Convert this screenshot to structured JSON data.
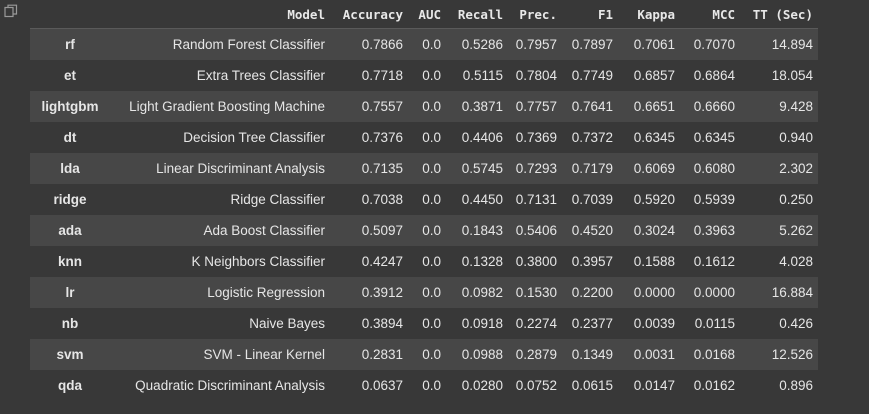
{
  "columns": [
    "Model",
    "Accuracy",
    "AUC",
    "Recall",
    "Prec.",
    "F1",
    "Kappa",
    "MCC",
    "TT (Sec)"
  ],
  "rows": [
    {
      "id": "rf",
      "model": "Random Forest Classifier",
      "accuracy": "0.7866",
      "auc": "0.0",
      "recall": "0.5286",
      "prec": "0.7957",
      "f1": "0.7897",
      "kappa": "0.7061",
      "mcc": "0.7070",
      "tt": "14.894"
    },
    {
      "id": "et",
      "model": "Extra Trees Classifier",
      "accuracy": "0.7718",
      "auc": "0.0",
      "recall": "0.5115",
      "prec": "0.7804",
      "f1": "0.7749",
      "kappa": "0.6857",
      "mcc": "0.6864",
      "tt": "18.054"
    },
    {
      "id": "lightgbm",
      "model": "Light Gradient Boosting Machine",
      "accuracy": "0.7557",
      "auc": "0.0",
      "recall": "0.3871",
      "prec": "0.7757",
      "f1": "0.7641",
      "kappa": "0.6651",
      "mcc": "0.6660",
      "tt": "9.428"
    },
    {
      "id": "dt",
      "model": "Decision Tree Classifier",
      "accuracy": "0.7376",
      "auc": "0.0",
      "recall": "0.4406",
      "prec": "0.7369",
      "f1": "0.7372",
      "kappa": "0.6345",
      "mcc": "0.6345",
      "tt": "0.940"
    },
    {
      "id": "lda",
      "model": "Linear Discriminant Analysis",
      "accuracy": "0.7135",
      "auc": "0.0",
      "recall": "0.5745",
      "prec": "0.7293",
      "f1": "0.7179",
      "kappa": "0.6069",
      "mcc": "0.6080",
      "tt": "2.302"
    },
    {
      "id": "ridge",
      "model": "Ridge Classifier",
      "accuracy": "0.7038",
      "auc": "0.0",
      "recall": "0.4450",
      "prec": "0.7131",
      "f1": "0.7039",
      "kappa": "0.5920",
      "mcc": "0.5939",
      "tt": "0.250"
    },
    {
      "id": "ada",
      "model": "Ada Boost Classifier",
      "accuracy": "0.5097",
      "auc": "0.0",
      "recall": "0.1843",
      "prec": "0.5406",
      "f1": "0.4520",
      "kappa": "0.3024",
      "mcc": "0.3963",
      "tt": "5.262"
    },
    {
      "id": "knn",
      "model": "K Neighbors Classifier",
      "accuracy": "0.4247",
      "auc": "0.0",
      "recall": "0.1328",
      "prec": "0.3800",
      "f1": "0.3957",
      "kappa": "0.1588",
      "mcc": "0.1612",
      "tt": "4.028"
    },
    {
      "id": "lr",
      "model": "Logistic Regression",
      "accuracy": "0.3912",
      "auc": "0.0",
      "recall": "0.0982",
      "prec": "0.1530",
      "f1": "0.2200",
      "kappa": "0.0000",
      "mcc": "0.0000",
      "tt": "16.884"
    },
    {
      "id": "nb",
      "model": "Naive Bayes",
      "accuracy": "0.3894",
      "auc": "0.0",
      "recall": "0.0918",
      "prec": "0.2274",
      "f1": "0.2377",
      "kappa": "0.0039",
      "mcc": "0.0115",
      "tt": "0.426"
    },
    {
      "id": "svm",
      "model": "SVM - Linear Kernel",
      "accuracy": "0.2831",
      "auc": "0.0",
      "recall": "0.0988",
      "prec": "0.2879",
      "f1": "0.1349",
      "kappa": "0.0031",
      "mcc": "0.0168",
      "tt": "12.526"
    },
    {
      "id": "qda",
      "model": "Quadratic Discriminant Analysis",
      "accuracy": "0.0637",
      "auc": "0.0",
      "recall": "0.0280",
      "prec": "0.0752",
      "f1": "0.0615",
      "kappa": "0.0147",
      "mcc": "0.0162",
      "tt": "0.896"
    }
  ],
  "icons": {
    "output_action": "copy-icon"
  },
  "colors": {
    "background": "#383838",
    "row_alt": "#474747",
    "text": "#e6e6e6"
  }
}
